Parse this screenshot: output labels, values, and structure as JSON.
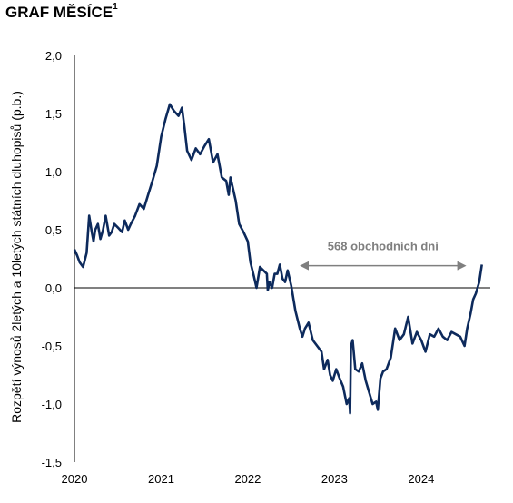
{
  "title": "GRAF MĚSÍCE",
  "title_sup": "1",
  "chart_data": {
    "type": "line",
    "ylabel": "Rozpětí výnosů 2letých a 10letých státních dluhopisů (p.b.)",
    "ylim": [
      -1.5,
      2.0
    ],
    "yticks": [
      "2,0",
      "1,5",
      "1,0",
      "0,5",
      "0,0",
      "-0,5",
      "-1,0",
      "-1,5"
    ],
    "ytick_values": [
      2.0,
      1.5,
      1.0,
      0.5,
      0.0,
      -0.5,
      -1.0,
      -1.5
    ],
    "xlim": [
      2020.0,
      2024.85
    ],
    "xticks": [
      "2020",
      "2021",
      "2022",
      "2023",
      "2024"
    ],
    "xtick_values": [
      2020,
      2021,
      2022,
      2023,
      2024
    ],
    "series_color": "#0d2a5c",
    "annotation": {
      "text": "568 obchodních dní",
      "x_start": 2022.62,
      "x_end": 2024.5,
      "y": 0.19,
      "color": "#7f7f7f"
    },
    "series": [
      {
        "x": [
          2020.0,
          2020.03,
          2020.06,
          2020.1,
          2020.14,
          2020.17,
          2020.2,
          2020.22,
          2020.24,
          2020.27,
          2020.3,
          2020.33,
          2020.36,
          2020.4,
          2020.43,
          2020.46,
          2020.5,
          2020.55,
          2020.58,
          2020.62,
          2020.65,
          2020.7,
          2020.75,
          2020.8,
          2020.85,
          2020.9,
          2020.95,
          2021.0,
          2021.05,
          2021.1,
          2021.15,
          2021.2,
          2021.24,
          2021.27,
          2021.3,
          2021.35,
          2021.4,
          2021.45,
          2021.5,
          2021.55,
          2021.6,
          2021.65,
          2021.7,
          2021.75,
          2021.78,
          2021.8,
          2021.83,
          2021.86,
          2021.9,
          2021.95,
          2022.0,
          2022.03,
          2022.07,
          2022.1,
          2022.14,
          2022.18,
          2022.22,
          2022.23,
          2022.25,
          2022.28,
          2022.31,
          2022.34,
          2022.37,
          2022.4,
          2022.43,
          2022.46,
          2022.5,
          2022.55,
          2022.6,
          2022.63,
          2022.66,
          2022.7,
          2022.75,
          2022.8,
          2022.85,
          2022.88,
          2022.92,
          2022.95,
          2022.98,
          2023.02,
          2023.06,
          2023.1,
          2023.14,
          2023.17,
          2023.18,
          2023.19,
          2023.21,
          2023.24,
          2023.28,
          2023.32,
          2023.36,
          2023.4,
          2023.44,
          2023.48,
          2023.5,
          2023.53,
          2023.56,
          2023.6,
          2023.65,
          2023.7,
          2023.75,
          2023.8,
          2023.85,
          2023.9,
          2023.95,
          2024.0,
          2024.05,
          2024.1,
          2024.15,
          2024.2,
          2024.25,
          2024.3,
          2024.35,
          2024.4,
          2024.45,
          2024.5,
          2024.53,
          2024.57,
          2024.6,
          2024.63,
          2024.67,
          2024.7
        ],
        "y": [
          0.33,
          0.28,
          0.22,
          0.18,
          0.3,
          0.62,
          0.48,
          0.4,
          0.5,
          0.55,
          0.42,
          0.5,
          0.62,
          0.45,
          0.48,
          0.55,
          0.52,
          0.48,
          0.58,
          0.5,
          0.55,
          0.62,
          0.72,
          0.68,
          0.8,
          0.92,
          1.05,
          1.3,
          1.45,
          1.58,
          1.52,
          1.48,
          1.55,
          1.38,
          1.18,
          1.1,
          1.2,
          1.15,
          1.22,
          1.28,
          1.08,
          1.15,
          0.95,
          0.92,
          0.8,
          0.95,
          0.85,
          0.75,
          0.55,
          0.48,
          0.4,
          0.22,
          0.1,
          0.0,
          0.18,
          0.15,
          0.12,
          -0.02,
          0.05,
          0.0,
          0.12,
          0.12,
          0.2,
          0.08,
          0.05,
          0.15,
          0.02,
          -0.2,
          -0.35,
          -0.42,
          -0.35,
          -0.3,
          -0.45,
          -0.5,
          -0.55,
          -0.7,
          -0.62,
          -0.75,
          -0.8,
          -0.7,
          -0.78,
          -0.85,
          -1.0,
          -0.95,
          -1.08,
          -0.5,
          -0.45,
          -0.7,
          -0.72,
          -0.65,
          -0.8,
          -0.9,
          -1.0,
          -0.98,
          -1.05,
          -0.78,
          -0.72,
          -0.7,
          -0.6,
          -0.35,
          -0.45,
          -0.4,
          -0.25,
          -0.48,
          -0.38,
          -0.45,
          -0.55,
          -0.4,
          -0.42,
          -0.35,
          -0.42,
          -0.45,
          -0.38,
          -0.4,
          -0.42,
          -0.5,
          -0.35,
          -0.22,
          -0.1,
          -0.05,
          0.05,
          0.2
        ]
      }
    ]
  }
}
